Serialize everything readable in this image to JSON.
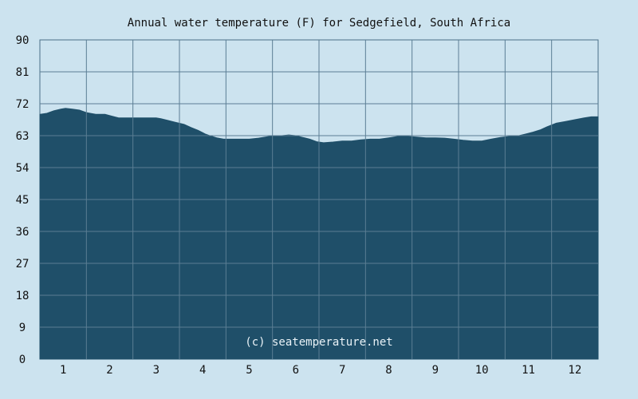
{
  "chart_data": {
    "type": "area",
    "title": "Annual water temperature (F) for Sedgefield, South Africa",
    "watermark": "(c) seatemperature.net",
    "y_ticks": [
      "0",
      "9",
      "18",
      "27",
      "36",
      "45",
      "54",
      "63",
      "72",
      "81",
      "90"
    ],
    "x_ticks": [
      "1",
      "2",
      "3",
      "4",
      "5",
      "6",
      "7",
      "8",
      "9",
      "10",
      "11",
      "12"
    ],
    "ylim": [
      0,
      90
    ],
    "xlim": [
      0.5,
      12.5
    ],
    "grid": true,
    "x": [
      0.5,
      0.65,
      0.8,
      0.95,
      1.05,
      1.2,
      1.35,
      1.5,
      1.7,
      1.9,
      2.05,
      2.2,
      2.4,
      2.6,
      2.8,
      3.0,
      3.1,
      3.25,
      3.4,
      3.6,
      3.75,
      3.9,
      4.05,
      4.15,
      4.3,
      4.45,
      4.6,
      4.8,
      5.0,
      5.2,
      5.4,
      5.55,
      5.7,
      5.85,
      6.0,
      6.15,
      6.3,
      6.45,
      6.6,
      6.8,
      7.0,
      7.2,
      7.4,
      7.6,
      7.8,
      8.0,
      8.2,
      8.4,
      8.6,
      8.8,
      9.0,
      9.2,
      9.4,
      9.6,
      9.8,
      10.0,
      10.2,
      10.4,
      10.6,
      10.8,
      10.95,
      11.1,
      11.25,
      11.4,
      11.6,
      11.8,
      12.0,
      12.2,
      12.35,
      12.5
    ],
    "y": [
      69.0,
      69.3,
      70.0,
      70.5,
      70.7,
      70.5,
      70.2,
      69.5,
      69.0,
      69.0,
      68.5,
      68.0,
      68.0,
      68.0,
      68.0,
      68.0,
      67.8,
      67.3,
      66.8,
      66.2,
      65.3,
      64.5,
      63.5,
      63.0,
      62.4,
      62.0,
      62.0,
      62.0,
      62.0,
      62.3,
      62.7,
      63.0,
      63.0,
      63.2,
      63.0,
      62.5,
      62.0,
      61.3,
      61.0,
      61.2,
      61.5,
      61.5,
      61.8,
      62.0,
      62.0,
      62.4,
      62.8,
      62.8,
      62.6,
      62.4,
      62.4,
      62.3,
      62.0,
      61.7,
      61.5,
      61.5,
      62.0,
      62.5,
      62.8,
      63.0,
      63.5,
      64.0,
      64.6,
      65.5,
      66.5,
      67.0,
      67.5,
      68.0,
      68.3,
      68.3
    ]
  }
}
